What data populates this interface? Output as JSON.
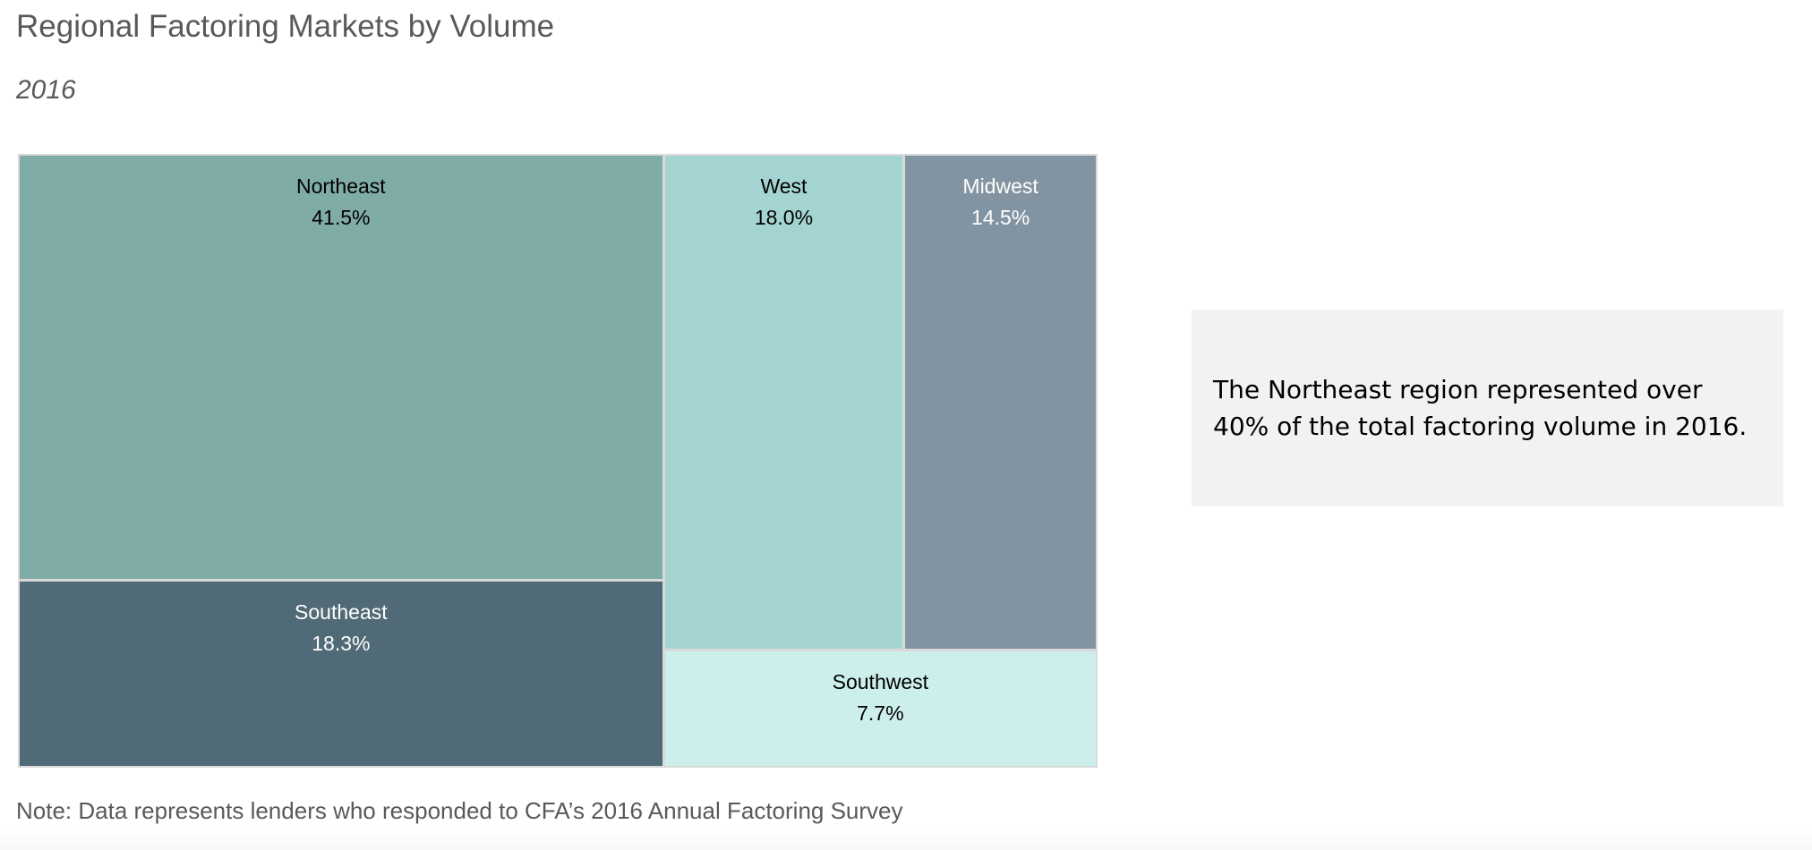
{
  "header": {
    "title": "Regional Factoring Markets by Volume",
    "subtitle": "2016"
  },
  "callout": {
    "text": "The Northeast region represented over 40% of the total factoring volume in 2016."
  },
  "footer": {
    "note": "Note: Data represents lenders who responded to CFA’s 2016 Annual Factoring Survey"
  },
  "chart_data": {
    "type": "treemap",
    "title": "Regional Factoring Markets by Volume",
    "subtitle": "2016",
    "unit": "%",
    "items": [
      {
        "name": "Northeast",
        "value": 41.5,
        "label": "41.5%",
        "color": "#80aca7",
        "text_color": "#000000"
      },
      {
        "name": "Southeast",
        "value": 18.3,
        "label": "18.3%",
        "color": "#506a77",
        "text_color": "#ffffff"
      },
      {
        "name": "West",
        "value": 18.0,
        "label": "18.0%",
        "color": "#a3d4d2",
        "text_color": "#000000"
      },
      {
        "name": "Midwest",
        "value": 14.5,
        "label": "14.5%",
        "color": "#8294a1",
        "text_color": "#ffffff"
      },
      {
        "name": "Southwest",
        "value": 7.7,
        "label": "7.7%",
        "color": "#ccefeb",
        "text_color": "#000000"
      }
    ]
  }
}
